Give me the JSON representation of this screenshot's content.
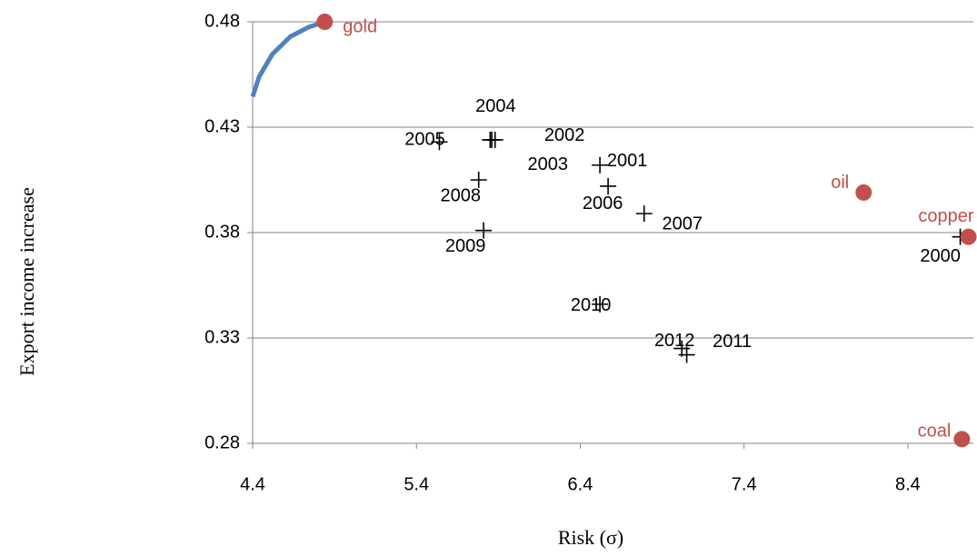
{
  "chart_data": {
    "type": "scatter",
    "xlabel": "Risk (σ)",
    "ylabel": "Export income increase",
    "xlim": [
      4.4,
      8.8
    ],
    "ylim": [
      0.28,
      0.48
    ],
    "xticks": [
      4.4,
      5.4,
      6.4,
      7.4,
      8.4
    ],
    "yticks": [
      0.28,
      0.33,
      0.38,
      0.43,
      0.48
    ],
    "grid": true,
    "years": {
      "labels": [
        "2005",
        "2004",
        "2002",
        "2003",
        "2001",
        "2006",
        "2007",
        "2008",
        "2009",
        "2010",
        "2012",
        "2011",
        "2000"
      ],
      "x": [
        5.54,
        5.85,
        5.86,
        5.88,
        6.52,
        6.57,
        6.79,
        5.78,
        5.81,
        6.52,
        7.02,
        7.05,
        8.72
      ],
      "y": [
        0.423,
        0.424,
        0.424,
        0.424,
        0.412,
        0.402,
        0.389,
        0.405,
        0.381,
        0.346,
        0.325,
        0.322,
        0.378
      ],
      "color": "#000000"
    },
    "commodities": {
      "labels": [
        "gold",
        "oil",
        "copper",
        "coal"
      ],
      "x": [
        4.84,
        8.13,
        8.77,
        8.73
      ],
      "y": [
        0.48,
        0.399,
        0.378,
        0.282
      ],
      "color": "#c0504d"
    },
    "curve": {
      "x": [
        4.4,
        4.44,
        4.52,
        4.63,
        4.74,
        4.84
      ],
      "y": [
        0.4445,
        0.454,
        0.4646,
        0.473,
        0.4774,
        0.48
      ],
      "color": "#4f81bd"
    }
  }
}
